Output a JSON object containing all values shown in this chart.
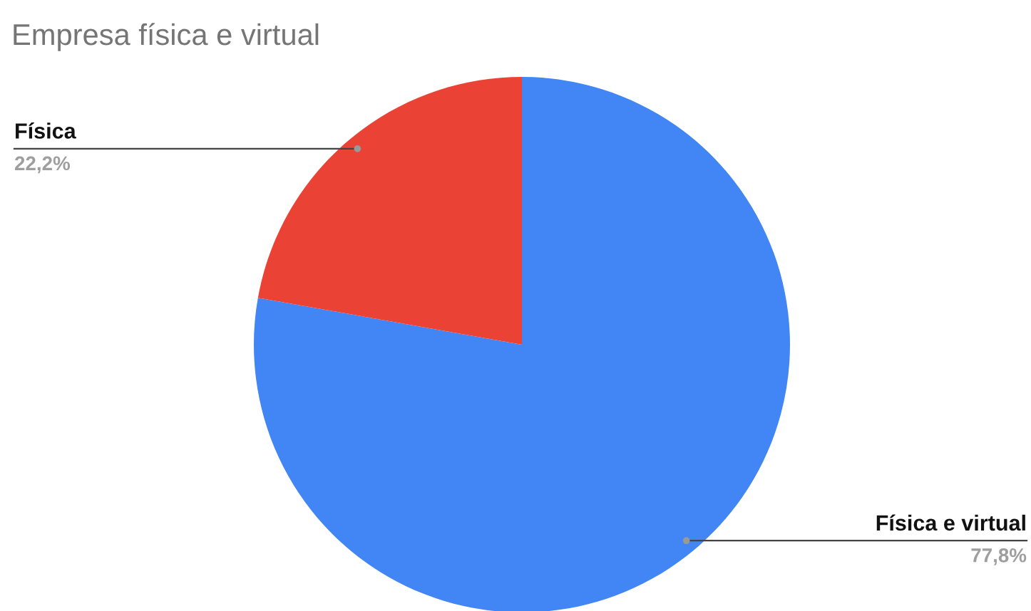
{
  "chart_data": {
    "type": "pie",
    "title": "Empresa física e virtual",
    "categories": [
      "Física e virtual",
      "Física"
    ],
    "values": [
      77.8,
      22.2
    ],
    "colors": [
      "#4285f4",
      "#ea4335"
    ],
    "value_labels": [
      "77,8%",
      "22,2%"
    ]
  }
}
